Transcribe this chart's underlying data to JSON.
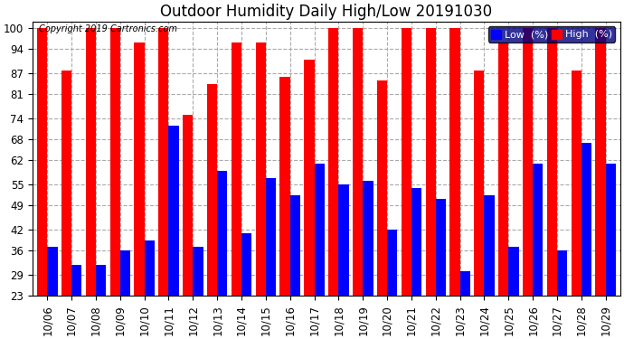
{
  "title": "Outdoor Humidity Daily High/Low 20191030",
  "copyright": "Copyright 2019 Cartronics.com",
  "dates": [
    "10/06",
    "10/07",
    "10/08",
    "10/09",
    "10/10",
    "10/11",
    "10/12",
    "10/13",
    "10/14",
    "10/15",
    "10/16",
    "10/17",
    "10/18",
    "10/19",
    "10/20",
    "10/21",
    "10/22",
    "10/23",
    "10/24",
    "10/25",
    "10/26",
    "10/27",
    "10/28",
    "10/29"
  ],
  "high": [
    100,
    88,
    100,
    100,
    96,
    100,
    75,
    84,
    96,
    96,
    86,
    91,
    100,
    100,
    85,
    100,
    100,
    100,
    88,
    96,
    100,
    100,
    88,
    100
  ],
  "low": [
    37,
    32,
    32,
    36,
    39,
    72,
    37,
    59,
    41,
    57,
    52,
    61,
    55,
    56,
    42,
    54,
    51,
    30,
    52,
    37,
    61,
    36,
    67,
    61
  ],
  "high_color": "#ff0000",
  "low_color": "#0000ff",
  "bg_color": "#ffffff",
  "plot_bg_color": "#ffffff",
  "grid_color": "#aaaaaa",
  "title_fontsize": 12,
  "tick_fontsize": 8.5,
  "yticks": [
    23,
    29,
    36,
    42,
    49,
    55,
    62,
    68,
    74,
    81,
    87,
    94,
    100
  ],
  "ymin": 23,
  "ylim": [
    23,
    102
  ],
  "bar_width": 0.42
}
